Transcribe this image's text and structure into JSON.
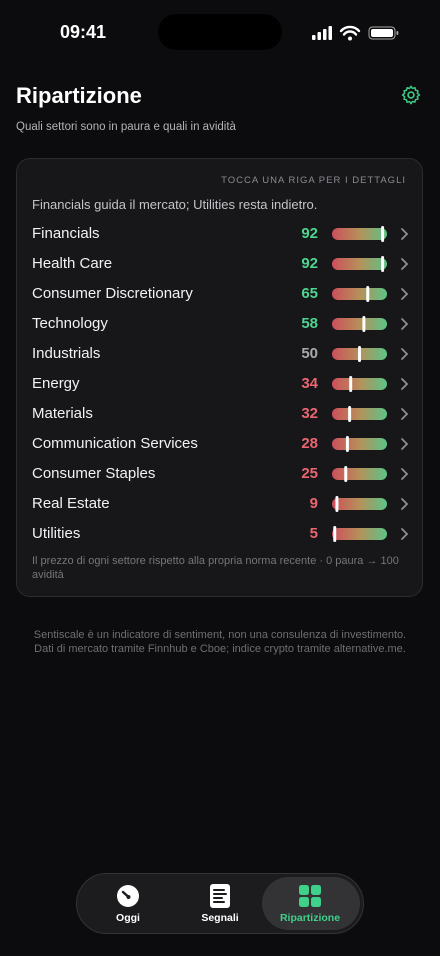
{
  "status_bar": {
    "time": "09:41"
  },
  "header": {
    "title": "Ripartizione",
    "subtitle": "Quali settori sono in paura e quali in avidità"
  },
  "card": {
    "hint": "TOCCA UNA RIGA PER I DETTAGLI",
    "summary": "Financials guida il mercato; Utilities resta indietro.",
    "xlim": [
      0,
      100
    ],
    "rows": [
      {
        "name": "Financials",
        "score": 92,
        "color": "#4fd590"
      },
      {
        "name": "Health Care",
        "score": 92,
        "color": "#4fd590"
      },
      {
        "name": "Consumer Discretionary",
        "score": 65,
        "color": "#4fd590"
      },
      {
        "name": "Technology",
        "score": 58,
        "color": "#4fd590"
      },
      {
        "name": "Industrials",
        "score": 50,
        "color": "#a9a9ae"
      },
      {
        "name": "Energy",
        "score": 34,
        "color": "#ea6670"
      },
      {
        "name": "Materials",
        "score": 32,
        "color": "#ea6670"
      },
      {
        "name": "Communication Services",
        "score": 28,
        "color": "#ea6670"
      },
      {
        "name": "Consumer Staples",
        "score": 25,
        "color": "#ea6670"
      },
      {
        "name": "Real Estate",
        "score": 9,
        "color": "#ea6670"
      },
      {
        "name": "Utilities",
        "score": 5,
        "color": "#ea6670"
      }
    ],
    "footnote": "Il prezzo di ogni settore rispetto alla propria norma recente · 0 paura → 100 avidità"
  },
  "disclaimer": [
    "Sentiscale è un indicatore di sentiment, non una consulenza di investimento.",
    "Dati di mercato tramite Finnhub e Cboe; indice crypto tramite alternative.me."
  ],
  "tab_bar": {
    "tabs": [
      {
        "label": "Oggi"
      },
      {
        "label": "Segnali"
      },
      {
        "label": "Ripartizione",
        "active": true
      }
    ]
  }
}
